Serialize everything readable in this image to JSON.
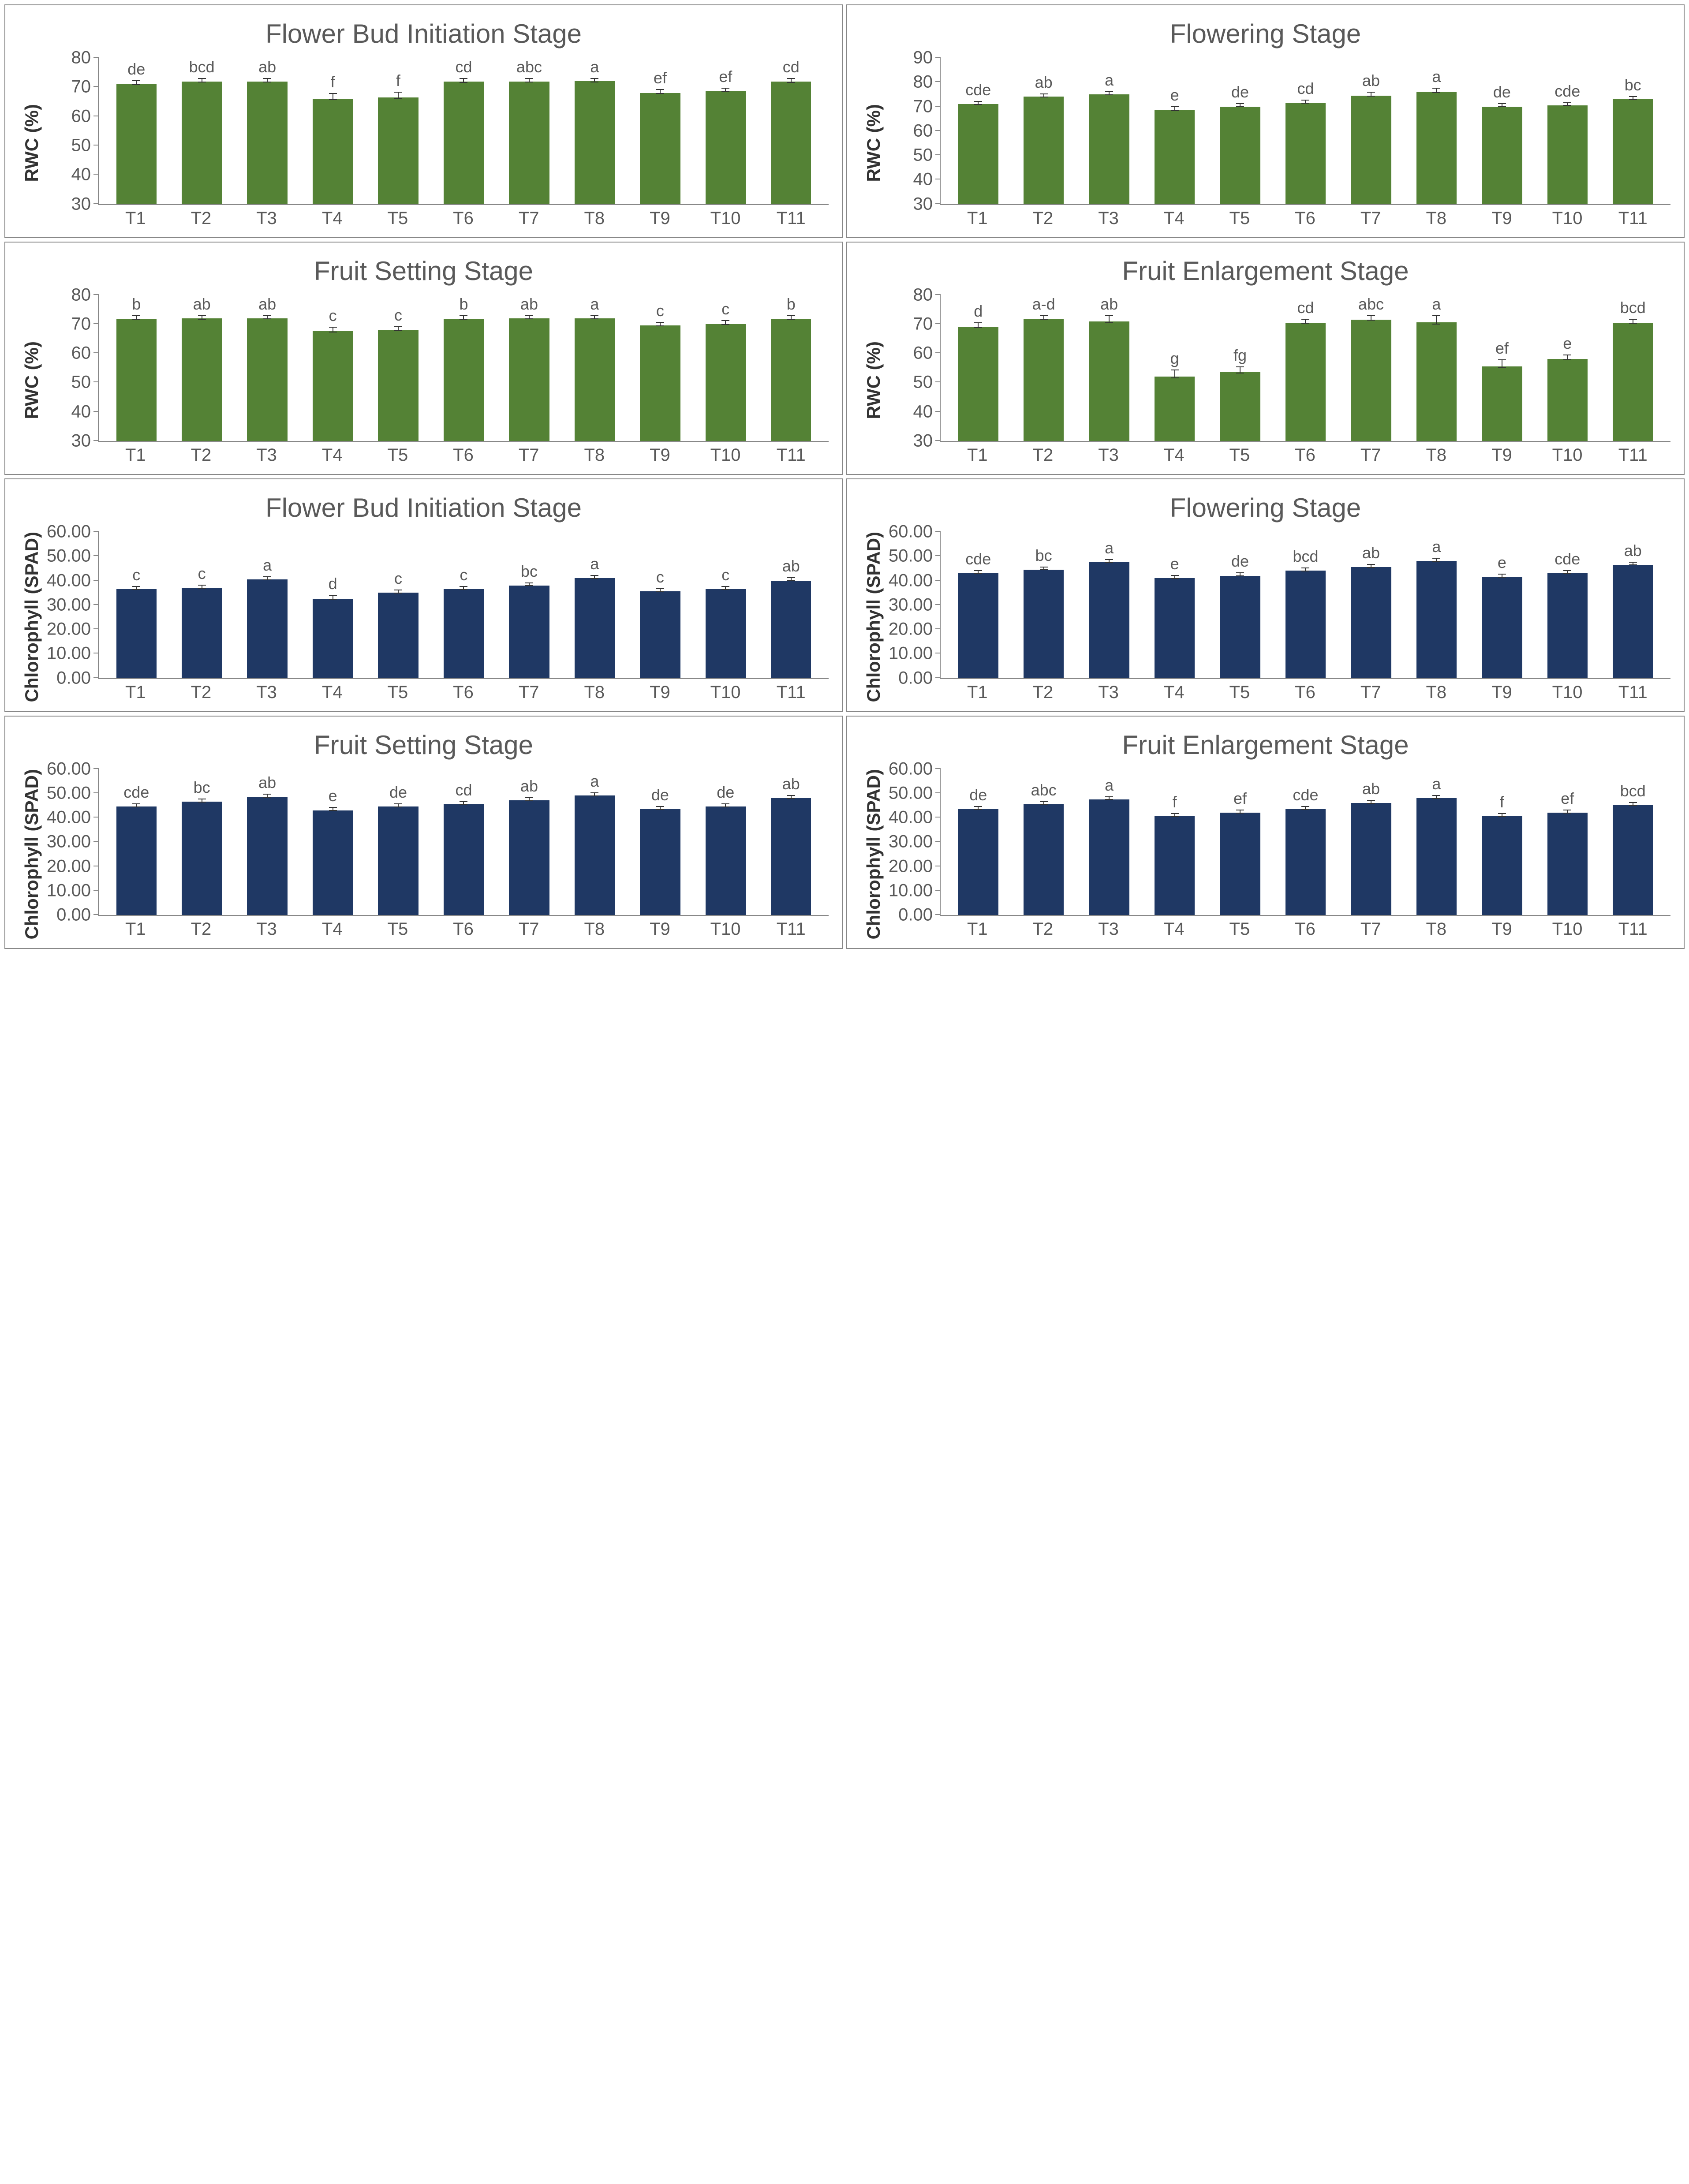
{
  "layout": {
    "grid_cols": 2,
    "grid_rows": 4,
    "panel_border_color": "#888888",
    "background_color": "#ffffff"
  },
  "colors": {
    "green_bar": "#548235",
    "blue_bar": "#1f3864",
    "error_bar": "#333333",
    "axis": "#888888",
    "title_text": "#595959",
    "tick_text": "#595959"
  },
  "fonts": {
    "title_size_pt": 60,
    "axis_label_size_pt": 42,
    "tick_size_pt": 40,
    "barletter_size_pt": 36,
    "title_weight": 400,
    "axis_label_weight": 700
  },
  "categories": [
    "T1",
    "T2",
    "T3",
    "T4",
    "T5",
    "T6",
    "T7",
    "T8",
    "T9",
    "T10",
    "T11"
  ],
  "panels": [
    {
      "id": "rwc-bud",
      "title": "Flower Bud Initiation Stage",
      "ylabel": "RWC (%)",
      "bar_color": "#548235",
      "ylim": [
        30,
        80
      ],
      "ytick_step": 10,
      "ytick_format": "int",
      "bar_width": 0.7,
      "values": [
        71,
        72.5,
        75.5,
        66,
        66.5,
        72,
        74.5,
        76.5,
        68,
        68.5,
        72
      ],
      "errors": [
        0.8,
        0.8,
        0.8,
        1.2,
        1.2,
        0.8,
        0.8,
        0.8,
        0.8,
        0.8,
        0.8
      ],
      "letters": [
        "de",
        "bcd",
        "ab",
        "f",
        "f",
        "cd",
        "abc",
        "a",
        "ef",
        "ef",
        "cd"
      ]
    },
    {
      "id": "rwc-flowering",
      "title": "Flowering Stage",
      "ylabel": "RWC (%)",
      "bar_color": "#548235",
      "ylim": [
        30,
        90
      ],
      "ytick_step": 10,
      "ytick_format": "int",
      "bar_width": 0.7,
      "values": [
        71,
        74,
        75,
        68.5,
        70,
        71.5,
        74.5,
        76,
        70,
        70.5,
        73
      ],
      "errors": [
        0.8,
        0.8,
        0.8,
        1.0,
        0.8,
        0.8,
        1.0,
        1.0,
        0.8,
        0.8,
        0.8
      ],
      "letters": [
        "cde",
        "ab",
        "a",
        "e",
        "de",
        "cd",
        "ab",
        "a",
        "de",
        "cde",
        "bc"
      ]
    },
    {
      "id": "rwc-fruitset",
      "title": "Fruit Setting Stage",
      "ylabel": "RWC (%)",
      "bar_color": "#548235",
      "ylim": [
        30,
        80
      ],
      "ytick_step": 10,
      "ytick_format": "int",
      "bar_width": 0.7,
      "values": [
        73,
        74.5,
        75,
        67.5,
        68,
        73.5,
        75,
        76.5,
        69.5,
        70,
        74
      ],
      "errors": [
        0.8,
        0.8,
        0.8,
        1.0,
        0.8,
        0.8,
        0.8,
        0.8,
        0.8,
        0.8,
        0.8
      ],
      "letters": [
        "b",
        "ab",
        "ab",
        "c",
        "c",
        "b",
        "ab",
        "a",
        "c",
        "c",
        "b"
      ]
    },
    {
      "id": "rwc-enlarge",
      "title": "Fruit Enlargement Stage",
      "ylabel": "RWC (%)",
      "bar_color": "#548235",
      "ylim": [
        30,
        80
      ],
      "ytick_step": 10,
      "ytick_format": "int",
      "bar_width": 0.7,
      "values": [
        69,
        72,
        74,
        52,
        53.5,
        70.5,
        72.5,
        75,
        55.5,
        58,
        70.5
      ],
      "errors": [
        1.0,
        0.8,
        1.5,
        1.5,
        1.2,
        0.8,
        1.0,
        1.8,
        1.5,
        1.0,
        0.8
      ],
      "letters": [
        "d",
        "a-d",
        "ab",
        "g",
        "fg",
        "cd",
        "abc",
        "a",
        "ef",
        "e",
        "bcd"
      ]
    },
    {
      "id": "chl-bud",
      "title": "Flower Bud Initiation Stage",
      "ylabel": "Chlorophyll (SPAD)",
      "bar_color": "#1f3864",
      "ylim": [
        0,
        60
      ],
      "ytick_step": 10,
      "ytick_format": "dec2",
      "bar_width": 0.7,
      "values": [
        36.5,
        37,
        40.5,
        32.5,
        35,
        36.5,
        38,
        41,
        35.5,
        36.5,
        40
      ],
      "errors": [
        0.8,
        0.8,
        0.8,
        1.0,
        0.8,
        0.8,
        0.8,
        0.8,
        0.8,
        0.8,
        0.8
      ],
      "letters": [
        "c",
        "c",
        "a",
        "d",
        "c",
        "c",
        "bc",
        "a",
        "c",
        "c",
        "ab"
      ]
    },
    {
      "id": "chl-flowering",
      "title": "Flowering Stage",
      "ylabel": "Chlorophyll (SPAD)",
      "bar_color": "#1f3864",
      "ylim": [
        0,
        60
      ],
      "ytick_step": 10,
      "ytick_format": "dec2",
      "bar_width": 0.7,
      "values": [
        43,
        44.5,
        47.5,
        41,
        42,
        44,
        45.5,
        48,
        41.5,
        43,
        46.5
      ],
      "errors": [
        0.8,
        0.8,
        0.8,
        0.8,
        0.8,
        0.8,
        0.8,
        0.8,
        0.8,
        0.8,
        0.8
      ],
      "letters": [
        "cde",
        "bc",
        "a",
        "e",
        "de",
        "bcd",
        "ab",
        "a",
        "e",
        "cde",
        "ab"
      ]
    },
    {
      "id": "chl-fruitset",
      "title": "Fruit Setting Stage",
      "ylabel": "Chlorophyll (SPAD)",
      "bar_color": "#1f3864",
      "ylim": [
        0,
        60
      ],
      "ytick_step": 10,
      "ytick_format": "dec2",
      "bar_width": 0.7,
      "values": [
        44.5,
        46.5,
        48.5,
        43,
        44.5,
        45.5,
        47,
        49,
        43.5,
        44.5,
        48
      ],
      "errors": [
        0.8,
        0.8,
        0.8,
        0.8,
        0.8,
        0.8,
        0.8,
        0.8,
        0.8,
        0.8,
        0.8
      ],
      "letters": [
        "cde",
        "bc",
        "ab",
        "e",
        "de",
        "cd",
        "ab",
        "a",
        "de",
        "de",
        "ab"
      ]
    },
    {
      "id": "chl-enlarge",
      "title": "Fruit Enlargement Stage",
      "ylabel": "Chlorophyll (SPAD)",
      "bar_color": "#1f3864",
      "ylim": [
        0,
        60
      ],
      "ytick_step": 10,
      "ytick_format": "dec2",
      "bar_width": 0.7,
      "values": [
        43.5,
        45.5,
        47.5,
        40.5,
        42,
        43.5,
        46,
        48,
        40.5,
        42,
        45
      ],
      "errors": [
        0.8,
        0.8,
        0.8,
        0.8,
        0.8,
        0.8,
        0.8,
        0.8,
        0.8,
        0.8,
        0.8
      ],
      "letters": [
        "de",
        "abc",
        "a",
        "f",
        "ef",
        "cde",
        "ab",
        "a",
        "f",
        "ef",
        "bcd"
      ]
    }
  ]
}
